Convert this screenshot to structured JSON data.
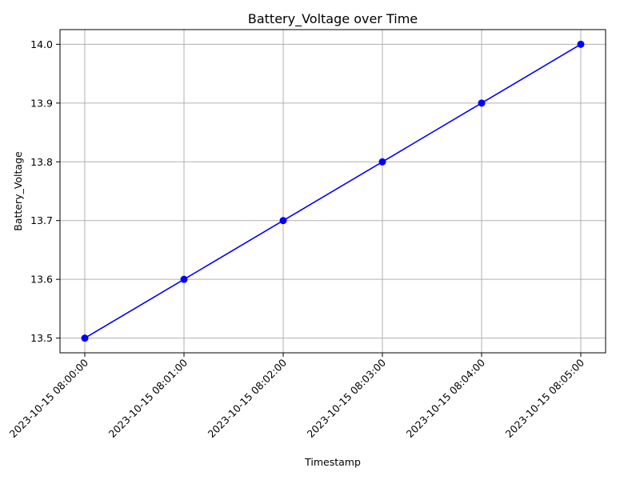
{
  "chart_data": {
    "type": "line",
    "title": "Battery_Voltage over Time",
    "xlabel": "Timestamp",
    "ylabel": "Battery_Voltage",
    "x": [
      "2023-10-15 08:00:00",
      "2023-10-15 08:01:00",
      "2023-10-15 08:02:00",
      "2023-10-15 08:03:00",
      "2023-10-15 08:04:00",
      "2023-10-15 08:05:00"
    ],
    "series": [
      {
        "values": [
          13.5,
          13.6,
          13.7,
          13.8,
          13.9,
          14.0
        ],
        "color": "#0000ff",
        "marker": "circle"
      }
    ],
    "yticks": [
      "13.5",
      "13.6",
      "13.7",
      "13.8",
      "13.9",
      "14.0"
    ],
    "ylim": [
      13.475,
      14.025
    ],
    "grid": true,
    "legend": "none",
    "xtick_rotation": 45
  }
}
